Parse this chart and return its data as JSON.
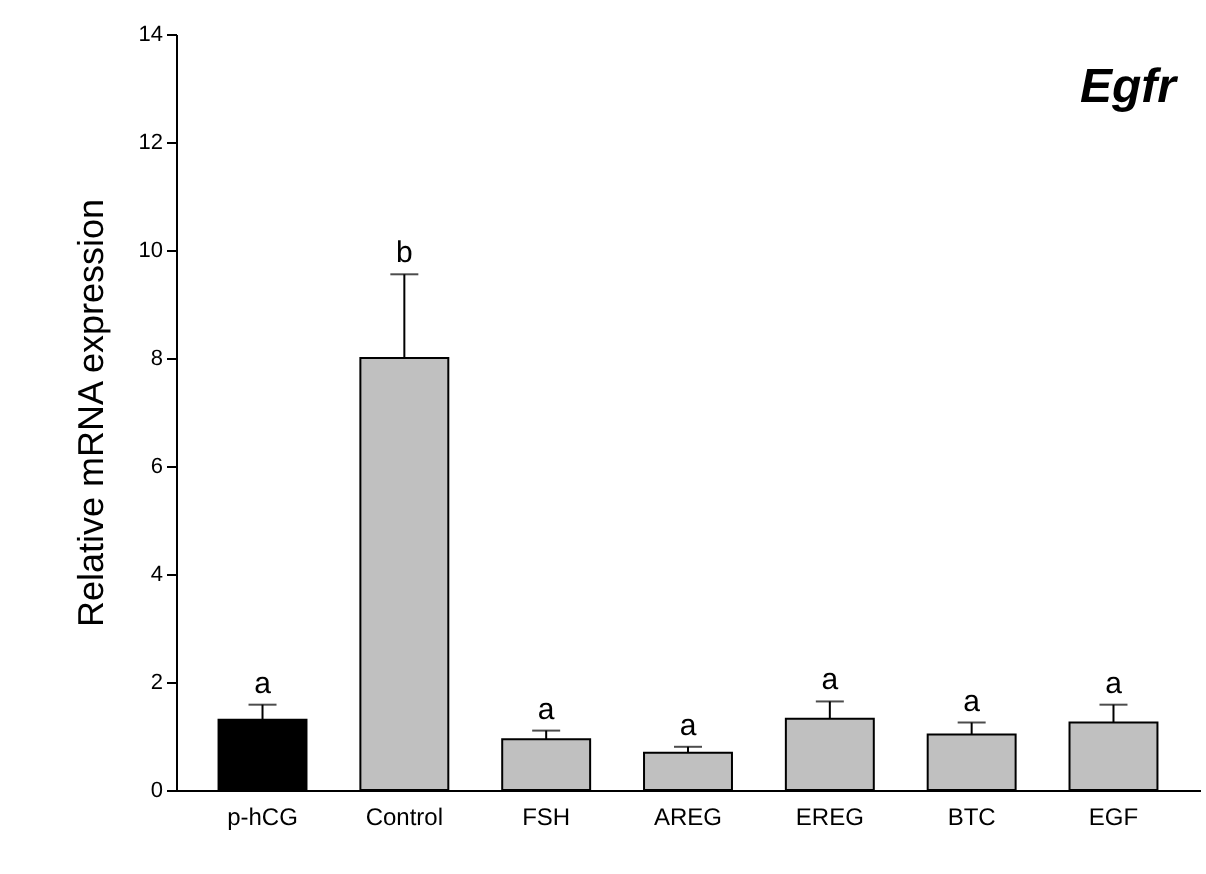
{
  "chart_data": {
    "type": "bar",
    "title": "Egfr",
    "ylabel": "Relative mRNA expression",
    "categories": [
      "p-hCG",
      "Control",
      "FSH",
      "AREG",
      "EREG",
      "BTC",
      "EGF"
    ],
    "values": [
      1.3,
      8.0,
      0.94,
      0.69,
      1.32,
      1.03,
      1.25
    ],
    "colors": [
      "#000000",
      "#c0c0c0",
      "#c0c0c0",
      "#c0c0c0",
      "#c0c0c0",
      "#c0c0c0",
      "#c0c0c0"
    ],
    "errors": [
      [
        1.3,
        1.58
      ],
      [
        8.0,
        9.55
      ],
      [
        0.94,
        1.1
      ],
      [
        0.69,
        0.8
      ],
      [
        1.32,
        1.64
      ],
      [
        1.03,
        1.25
      ],
      [
        1.25,
        1.58
      ]
    ],
    "ylim": [
      0,
      14
    ],
    "yticks": [
      0,
      2,
      4,
      6,
      8,
      10,
      12,
      14
    ],
    "annotations": [
      {
        "text": "a",
        "x": "p-hCG",
        "y": 1.58
      },
      {
        "text": "b",
        "x": "Control",
        "y": 9.55
      },
      {
        "text": "a",
        "x": "FSH",
        "y": 1.1
      },
      {
        "text": "a",
        "x": "AREG",
        "y": 0.8
      },
      {
        "text": "a",
        "x": "EREG",
        "y": 1.64
      },
      {
        "text": "a",
        "x": "BTC",
        "y": 1.25
      },
      {
        "text": "a",
        "x": "EGF",
        "y": 1.58
      }
    ],
    "grid": false
  }
}
